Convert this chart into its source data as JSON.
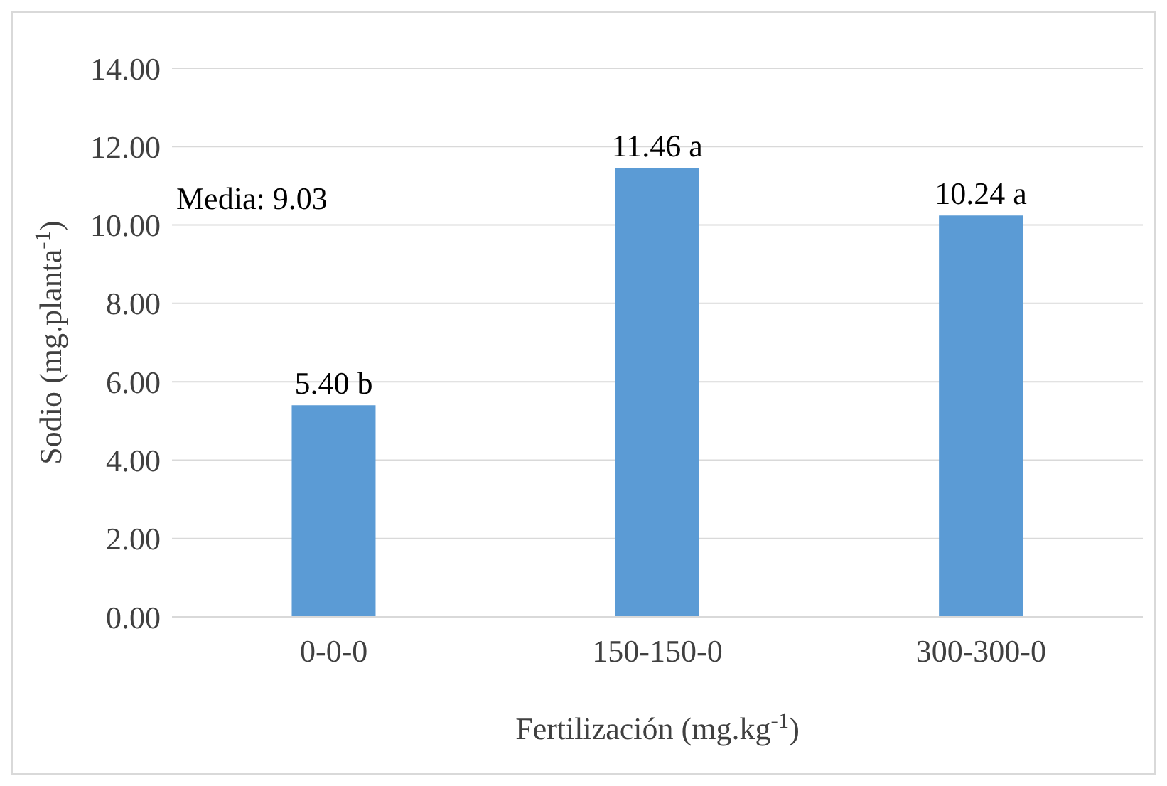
{
  "chart_data": {
    "type": "bar",
    "categories": [
      "0-0-0",
      "150-150-0",
      "300-300-0"
    ],
    "values": [
      5.4,
      11.46,
      10.24
    ],
    "value_labels": [
      "5.40 b",
      "11.46 a",
      "10.24 a"
    ],
    "color": "#5b9bd5",
    "xlabel": "Fertilización (mg.kg$^{-1}$)",
    "ylabel": "Sodio (mg.planta$^{-1}$)",
    "annotations": [
      "Media: 9.03"
    ],
    "ylim": [
      0,
      14
    ],
    "yticks": [
      {
        "value": 0,
        "label": "0.00"
      },
      {
        "value": 2,
        "label": "2.00"
      },
      {
        "value": 4,
        "label": "4.00"
      },
      {
        "value": 6,
        "label": "6.00"
      },
      {
        "value": 8,
        "label": "8.00"
      },
      {
        "value": 10,
        "label": "10.00"
      },
      {
        "value": 12,
        "label": "12.00"
      },
      {
        "value": 14,
        "label": "14.00"
      }
    ],
    "grid": "y",
    "legend": false
  }
}
